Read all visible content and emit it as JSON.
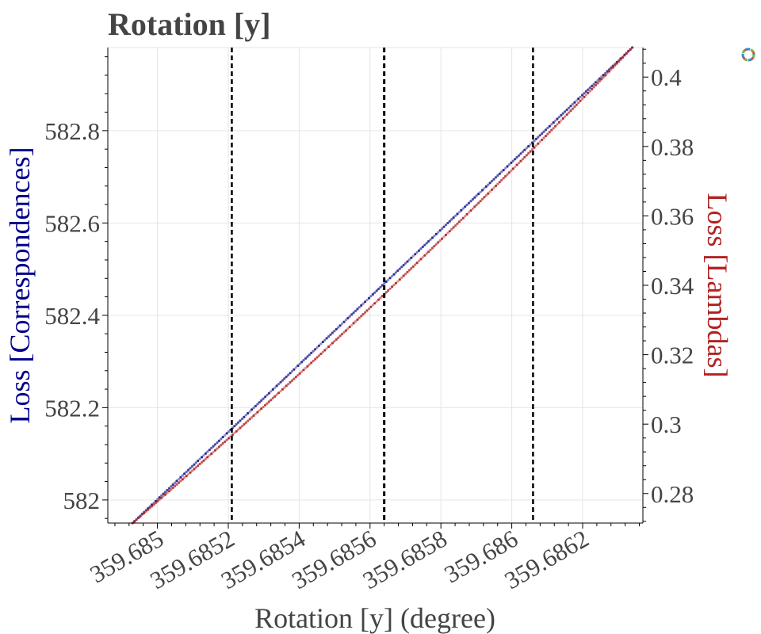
{
  "chart_data": {
    "type": "scatter",
    "title": "Rotation [y]",
    "xlabel": "Rotation [y] (degree)",
    "ylabel_left": "Loss [Correspondences]",
    "ylabel_right": "Loss [Lambdas]",
    "xlim": [
      359.68486,
      359.68637
    ],
    "ylim_left": [
      581.95,
      582.98
    ],
    "ylim_right": [
      0.2715,
      0.4085
    ],
    "x_ticks": [
      359.685,
      359.6852,
      359.6854,
      359.6856,
      359.6858,
      359.686,
      359.6862
    ],
    "x_tick_labels": [
      "359.685",
      "359.6852",
      "359.6854",
      "359.6856",
      "359.6858",
      "359.686",
      "359.6862"
    ],
    "y_left_ticks": [
      582.0,
      582.2,
      582.4,
      582.6,
      582.8
    ],
    "y_left_tick_labels": [
      "582",
      "582.2",
      "582.4",
      "582.6",
      "582.8"
    ],
    "y_right_ticks": [
      0.28,
      0.3,
      0.32,
      0.34,
      0.36,
      0.38,
      0.4
    ],
    "y_right_tick_labels": [
      "0.28",
      "0.3",
      "0.32",
      "0.34",
      "0.36",
      "0.38",
      "0.4"
    ],
    "vertical_lines": [
      359.68521,
      359.68564,
      359.68606
    ],
    "grid": true,
    "series": [
      {
        "axis": "left",
        "color": "#1c1c8c",
        "x_start": 359.68493,
        "y_start": 581.95,
        "x_end": 359.68634,
        "y_end": 582.98
      },
      {
        "axis": "right",
        "color": "#b22222",
        "x_start": 359.68493,
        "y_start": 0.2715,
        "x_end": 359.68634,
        "y_end": 0.4085,
        "curvature": 0.09
      }
    ],
    "colors": {
      "left_axis_label": "#00008b",
      "right_axis_label": "#b22222",
      "text": "#444444"
    }
  },
  "toolbar": {
    "logo_icon": "bokeh-logo-icon"
  }
}
